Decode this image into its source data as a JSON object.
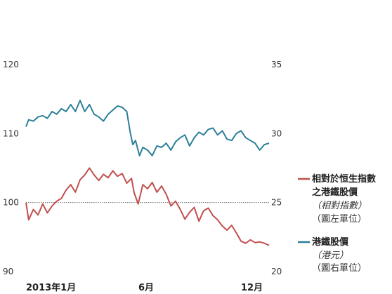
{
  "chart_data": {
    "type": "line",
    "title": "",
    "xlabel": "",
    "ylabel_left": "",
    "ylabel_right": "",
    "x_ticks": [
      "2013年1月",
      "6月",
      "12月"
    ],
    "x_range": [
      "2013-01-01",
      "2013-12-31"
    ],
    "y_left": {
      "range": [
        90,
        120
      ],
      "ticks": [
        "120",
        "110",
        "100",
        "90"
      ]
    },
    "y_right": {
      "range": [
        20,
        35
      ],
      "ticks": [
        "35",
        "30",
        "25",
        "20"
      ]
    },
    "reference_line": {
      "axis": "left",
      "value": 100,
      "style": "dotted"
    },
    "grid": false,
    "legend_position": "right",
    "series": [
      {
        "name": "相對於恒生指數之港鐵股價",
        "subtitle": "（相對指數）",
        "unit_note": "（圖左單位）",
        "axis": "left",
        "color": "#c0504d",
        "points": [
          [
            "2013-01-01",
            100.0
          ],
          [
            "2013-01-05",
            97.5
          ],
          [
            "2013-01-12",
            99.0
          ],
          [
            "2013-01-19",
            98.2
          ],
          [
            "2013-01-26",
            99.8
          ],
          [
            "2013-02-02",
            98.5
          ],
          [
            "2013-02-09",
            99.5
          ],
          [
            "2013-02-16",
            100.2
          ],
          [
            "2013-02-23",
            100.6
          ],
          [
            "2013-03-02",
            101.8
          ],
          [
            "2013-03-09",
            102.6
          ],
          [
            "2013-03-16",
            101.5
          ],
          [
            "2013-03-23",
            103.3
          ],
          [
            "2013-03-30",
            104.0
          ],
          [
            "2013-04-06",
            105.0
          ],
          [
            "2013-04-13",
            104.0
          ],
          [
            "2013-04-20",
            103.2
          ],
          [
            "2013-04-27",
            104.1
          ],
          [
            "2013-05-04",
            103.6
          ],
          [
            "2013-05-11",
            104.6
          ],
          [
            "2013-05-18",
            103.8
          ],
          [
            "2013-05-25",
            104.2
          ],
          [
            "2013-06-01",
            102.8
          ],
          [
            "2013-06-08",
            103.5
          ],
          [
            "2013-06-12",
            101.4
          ],
          [
            "2013-06-18",
            99.8
          ],
          [
            "2013-06-25",
            102.6
          ],
          [
            "2013-07-02",
            102.0
          ],
          [
            "2013-07-09",
            102.9
          ],
          [
            "2013-07-16",
            101.5
          ],
          [
            "2013-07-23",
            102.4
          ],
          [
            "2013-07-30",
            101.2
          ],
          [
            "2013-08-06",
            99.5
          ],
          [
            "2013-08-13",
            100.2
          ],
          [
            "2013-08-20",
            99.0
          ],
          [
            "2013-08-27",
            97.6
          ],
          [
            "2013-09-03",
            98.6
          ],
          [
            "2013-09-10",
            99.3
          ],
          [
            "2013-09-17",
            97.3
          ],
          [
            "2013-09-24",
            98.8
          ],
          [
            "2013-10-01",
            99.2
          ],
          [
            "2013-10-08",
            98.1
          ],
          [
            "2013-10-15",
            97.5
          ],
          [
            "2013-10-22",
            96.6
          ],
          [
            "2013-10-29",
            96.0
          ],
          [
            "2013-11-05",
            96.7
          ],
          [
            "2013-11-12",
            95.6
          ],
          [
            "2013-11-19",
            94.4
          ],
          [
            "2013-11-26",
            94.1
          ],
          [
            "2013-12-03",
            94.6
          ],
          [
            "2013-12-10",
            94.2
          ],
          [
            "2013-12-17",
            94.3
          ],
          [
            "2013-12-24",
            94.1
          ],
          [
            "2013-12-31",
            93.8
          ]
        ]
      },
      {
        "name": "港鐵股價",
        "subtitle": "（港元）",
        "unit_note": "（圖右單位）",
        "axis": "right",
        "color": "#2c7f99",
        "points": [
          [
            "2013-01-01",
            30.5
          ],
          [
            "2013-01-05",
            31.0
          ],
          [
            "2013-01-12",
            30.9
          ],
          [
            "2013-01-19",
            31.2
          ],
          [
            "2013-01-26",
            31.3
          ],
          [
            "2013-02-02",
            31.1
          ],
          [
            "2013-02-09",
            31.6
          ],
          [
            "2013-02-16",
            31.4
          ],
          [
            "2013-02-23",
            31.8
          ],
          [
            "2013-03-02",
            31.6
          ],
          [
            "2013-03-09",
            32.1
          ],
          [
            "2013-03-16",
            31.6
          ],
          [
            "2013-03-23",
            32.4
          ],
          [
            "2013-03-30",
            31.6
          ],
          [
            "2013-04-06",
            32.1
          ],
          [
            "2013-04-13",
            31.4
          ],
          [
            "2013-04-20",
            31.2
          ],
          [
            "2013-04-27",
            30.9
          ],
          [
            "2013-05-04",
            31.4
          ],
          [
            "2013-05-11",
            31.7
          ],
          [
            "2013-05-18",
            32.0
          ],
          [
            "2013-05-25",
            31.9
          ],
          [
            "2013-06-01",
            31.6
          ],
          [
            "2013-06-06",
            30.1
          ],
          [
            "2013-06-10",
            29.2
          ],
          [
            "2013-06-14",
            29.5
          ],
          [
            "2013-06-20",
            28.4
          ],
          [
            "2013-06-25",
            29.0
          ],
          [
            "2013-07-02",
            28.8
          ],
          [
            "2013-07-09",
            28.4
          ],
          [
            "2013-07-16",
            29.1
          ],
          [
            "2013-07-23",
            29.0
          ],
          [
            "2013-07-30",
            29.3
          ],
          [
            "2013-08-06",
            28.8
          ],
          [
            "2013-08-13",
            29.4
          ],
          [
            "2013-08-20",
            29.7
          ],
          [
            "2013-08-27",
            29.9
          ],
          [
            "2013-09-03",
            29.1
          ],
          [
            "2013-09-10",
            29.7
          ],
          [
            "2013-09-17",
            30.1
          ],
          [
            "2013-09-24",
            29.9
          ],
          [
            "2013-10-01",
            30.3
          ],
          [
            "2013-10-08",
            30.4
          ],
          [
            "2013-10-15",
            29.9
          ],
          [
            "2013-10-22",
            30.2
          ],
          [
            "2013-10-29",
            29.6
          ],
          [
            "2013-11-05",
            29.5
          ],
          [
            "2013-11-12",
            30.0
          ],
          [
            "2013-11-19",
            30.2
          ],
          [
            "2013-11-26",
            29.7
          ],
          [
            "2013-12-03",
            29.5
          ],
          [
            "2013-12-10",
            29.3
          ],
          [
            "2013-12-17",
            28.8
          ],
          [
            "2013-12-24",
            29.2
          ],
          [
            "2013-12-31",
            29.3
          ]
        ]
      }
    ]
  }
}
